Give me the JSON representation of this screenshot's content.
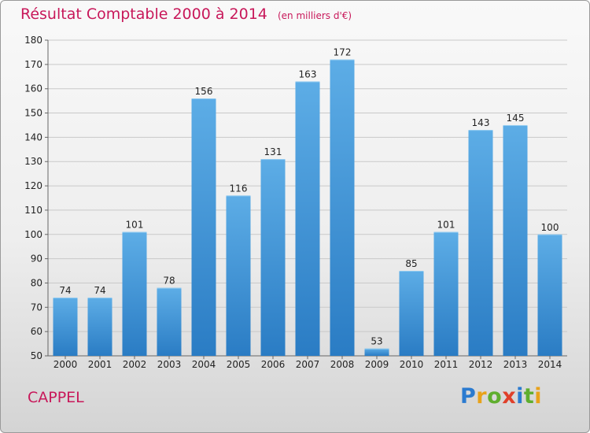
{
  "header": {
    "title": "Résultat Comptable 2000 à 2014",
    "unit_note": "(en milliers d'€)"
  },
  "footer": {
    "place": "CAPPEL",
    "logo_letters": [
      "P",
      "r",
      "o",
      "x",
      "i",
      "t",
      "i"
    ],
    "logo_colors": [
      "#2b7bd0",
      "#e8a21a",
      "#5fae2e",
      "#e0402a",
      "#2b7bd0",
      "#5fae2e",
      "#e8a21a"
    ]
  },
  "colors": {
    "title": "#c8185a",
    "bar_top": "#5dade6",
    "bar_bottom": "#2a7cc4",
    "grid": "#c9c9c9"
  },
  "chart_data": {
    "type": "bar",
    "title": "Résultat Comptable 2000 à 2014",
    "subtitle": "(en milliers d'€)",
    "categories": [
      "2000",
      "2001",
      "2002",
      "2003",
      "2004",
      "2005",
      "2006",
      "2007",
      "2008",
      "2009",
      "2010",
      "2011",
      "2012",
      "2013",
      "2014"
    ],
    "values": [
      74,
      74,
      101,
      78,
      156,
      116,
      131,
      163,
      172,
      53,
      85,
      101,
      143,
      145,
      100
    ],
    "ylim": [
      50,
      180
    ],
    "yticks": [
      50,
      60,
      70,
      80,
      90,
      100,
      110,
      120,
      130,
      140,
      150,
      160,
      170,
      180
    ],
    "xlabel": "",
    "ylabel": "",
    "grid": true,
    "legend": "none"
  }
}
